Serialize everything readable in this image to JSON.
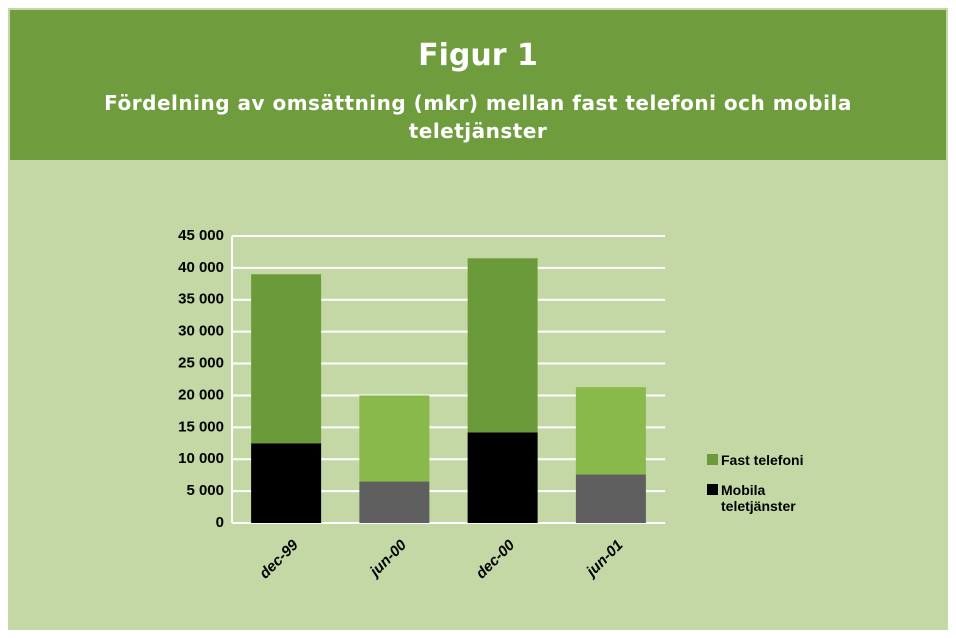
{
  "chart_data": {
    "type": "stacked_bar",
    "title": "Figur 1",
    "subtitle": "Fördelning av omsättning (mkr) mellan fast telefoni och mobila teletjänster",
    "categories": [
      "dec-99",
      "jun-00",
      "dec-00",
      "jun-01"
    ],
    "series": [
      {
        "name": "Mobila teletjänster",
        "color": "#000000",
        "colors": [
          "#000000",
          "#5f5f5f",
          "#000000",
          "#5f5f5f"
        ],
        "values": [
          12500,
          6500,
          14200,
          7600
        ]
      },
      {
        "name": "Fast telefoni",
        "color": "#6b9a3b",
        "colors": [
          "#6b9a3b",
          "#88b94a",
          "#6b9a3b",
          "#88b94a"
        ],
        "values": [
          26500,
          13500,
          27300,
          13700
        ]
      }
    ],
    "ylim": [
      0,
      45000
    ],
    "yticks": [
      0,
      {
        "value": 5000,
        "label": "5 000"
      },
      {
        "value": 10000,
        "label": "10 000"
      },
      {
        "value": 15000,
        "label": "15 000"
      },
      {
        "value": 20000,
        "label": "20 000"
      },
      {
        "value": 25000,
        "label": "25 000"
      },
      {
        "value": 30000,
        "label": "30 000"
      },
      {
        "value": 35000,
        "label": "35 000"
      },
      {
        "value": 40000,
        "label": "40 000"
      },
      {
        "value": 45000,
        "label": "45 000"
      }
    ],
    "grid": true
  }
}
